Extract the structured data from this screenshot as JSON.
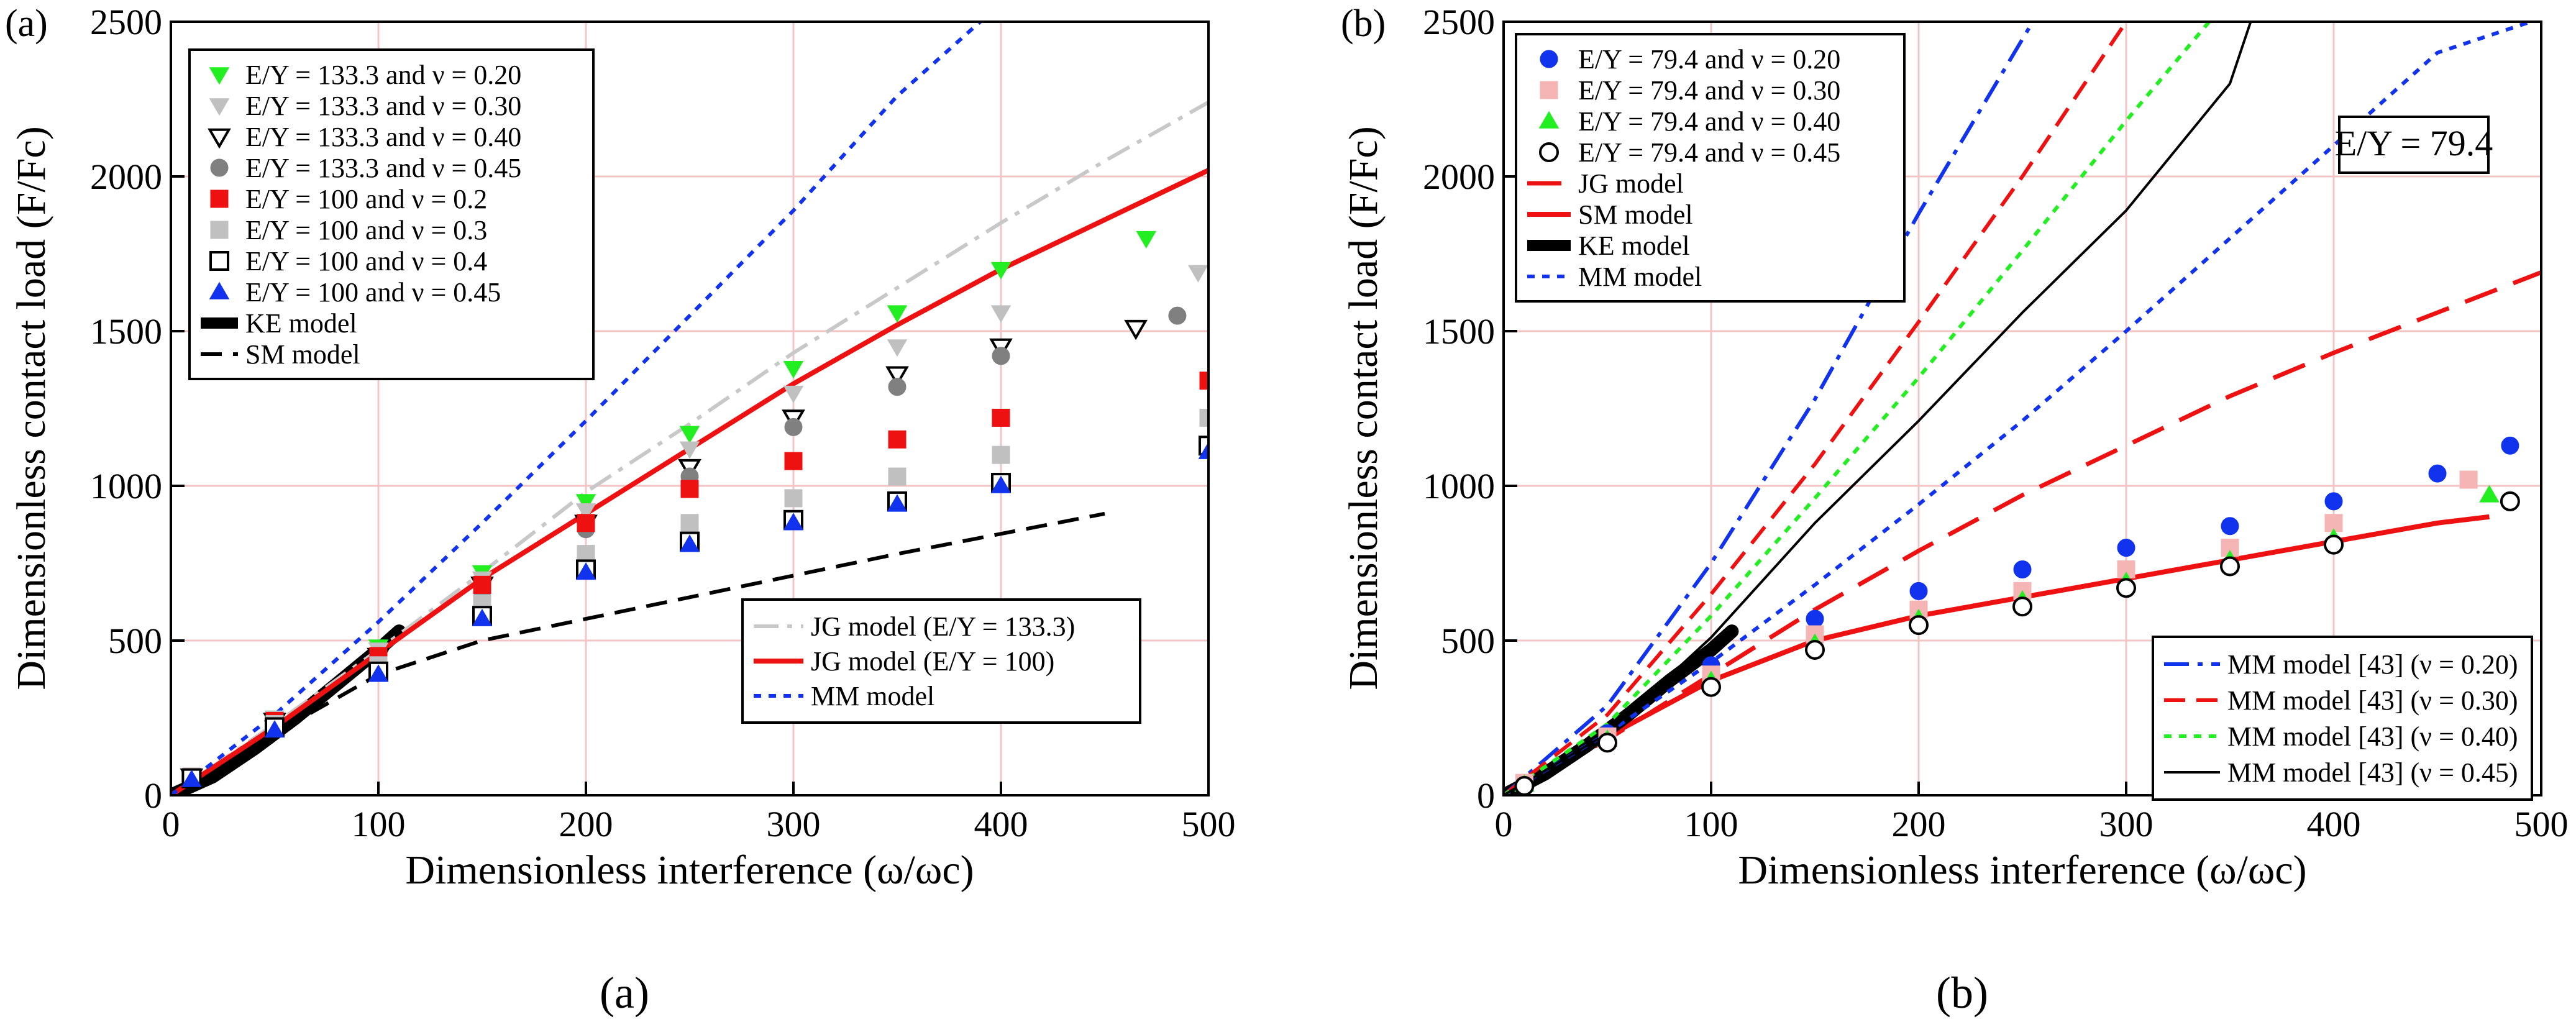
{
  "captions": [
    "(a)",
    "(b)"
  ],
  "chart_data": [
    {
      "type": "scatter",
      "panel_label": "(a)",
      "xlabel": "Dimensionless interference (ω/ωc)",
      "ylabel": "Dimensionless contact load (F/Fc)",
      "xlim": [
        0,
        500
      ],
      "ylim": [
        0,
        2500
      ],
      "xticks": [
        0,
        100,
        200,
        300,
        400,
        500
      ],
      "yticks": [
        0,
        500,
        1000,
        1500,
        2000,
        2500
      ],
      "grid": true,
      "legends": [
        {
          "placement": "top-left",
          "entries": [
            "E/Y = 133.3 and ν = 0.20",
            "E/Y = 133.3 and ν = 0.30",
            "E/Y = 133.3 and ν = 0.40",
            "E/Y = 133.3 and ν = 0.45",
            "E/Y = 100 and ν = 0.2",
            "E/Y = 100 and ν = 0.3",
            "E/Y = 100 and ν = 0.4",
            "E/Y = 100 and ν = 0.45",
            "KE model",
            "SM model"
          ]
        },
        {
          "placement": "bottom-right",
          "entries": [
            "JG model (E/Y = 133.3)",
            "JG model (E/Y = 100)",
            "MM model"
          ]
        }
      ],
      "series": [
        {
          "name": "E/Y = 133.3 and ν = 0.20",
          "kind": "marker",
          "marker": "triangle-down-filled",
          "color": "#22ee22",
          "x": [
            10,
            50,
            100,
            150,
            200,
            250,
            300,
            350,
            400,
            470
          ],
          "y": [
            60,
            250,
            480,
            720,
            950,
            1170,
            1380,
            1560,
            1700,
            1800
          ]
        },
        {
          "name": "E/Y = 133.3 and ν = 0.30",
          "kind": "marker",
          "marker": "triangle-down-filled",
          "color": "#c0c0c0",
          "x": [
            10,
            50,
            100,
            150,
            200,
            250,
            300,
            350,
            400,
            495
          ],
          "y": [
            60,
            250,
            470,
            700,
            920,
            1120,
            1300,
            1450,
            1560,
            1690
          ]
        },
        {
          "name": "E/Y = 133.3 and ν = 0.40",
          "kind": "marker",
          "marker": "triangle-down-open",
          "color": "#000000",
          "x": [
            10,
            50,
            100,
            150,
            200,
            250,
            300,
            350,
            400,
            465
          ],
          "y": [
            60,
            240,
            450,
            680,
            880,
            1060,
            1220,
            1360,
            1450,
            1510
          ]
        },
        {
          "name": "E/Y = 133.3 and ν = 0.45",
          "kind": "marker",
          "marker": "circle-filled",
          "color": "#808080",
          "x": [
            10,
            50,
            100,
            150,
            200,
            250,
            300,
            350,
            400,
            485
          ],
          "y": [
            60,
            240,
            440,
            660,
            860,
            1030,
            1190,
            1320,
            1420,
            1550
          ]
        },
        {
          "name": "E/Y = 100 and ν = 0.2",
          "kind": "marker",
          "marker": "square-filled",
          "color": "#ee1111",
          "x": [
            10,
            50,
            100,
            150,
            200,
            250,
            300,
            350,
            400,
            500
          ],
          "y": [
            60,
            240,
            450,
            680,
            880,
            990,
            1080,
            1150,
            1220,
            1340
          ]
        },
        {
          "name": "E/Y = 100 and ν = 0.3",
          "kind": "marker",
          "marker": "square-filled",
          "color": "#c0c0c0",
          "x": [
            10,
            50,
            100,
            150,
            200,
            250,
            300,
            350,
            400,
            500
          ],
          "y": [
            60,
            230,
            420,
            620,
            780,
            880,
            960,
            1030,
            1100,
            1220
          ]
        },
        {
          "name": "E/Y = 100 and ν = 0.4",
          "kind": "marker",
          "marker": "square-open",
          "color": "#000000",
          "x": [
            10,
            50,
            100,
            150,
            200,
            250,
            300,
            350,
            400,
            500
          ],
          "y": [
            55,
            220,
            400,
            580,
            730,
            820,
            890,
            950,
            1010,
            1130
          ]
        },
        {
          "name": "E/Y = 100 and ν = 0.45",
          "kind": "marker",
          "marker": "triangle-up-filled",
          "color": "#1133ee",
          "x": [
            10,
            50,
            100,
            150,
            200,
            250,
            300,
            350,
            400,
            500
          ],
          "y": [
            50,
            210,
            390,
            570,
            720,
            810,
            880,
            940,
            1000,
            1110
          ]
        },
        {
          "name": "KE model",
          "kind": "line",
          "style": "solid-thick",
          "color": "#000000",
          "x": [
            0,
            20,
            40,
            60,
            80,
            100,
            110
          ],
          "y": [
            0,
            60,
            150,
            250,
            360,
            470,
            530
          ]
        },
        {
          "name": "SM model",
          "kind": "line",
          "style": "dashed",
          "color": "#000000",
          "x": [
            0,
            50,
            100,
            150,
            200,
            250,
            300,
            350,
            400,
            450
          ],
          "y": [
            0,
            200,
            390,
            500,
            570,
            640,
            710,
            780,
            845,
            910
          ]
        },
        {
          "name": "JG model (E/Y = 133.3)",
          "kind": "line",
          "style": "dash-dot",
          "color": "#c8c8c8",
          "x": [
            0,
            50,
            100,
            150,
            200,
            250,
            300,
            350,
            400,
            450,
            500
          ],
          "y": [
            0,
            230,
            470,
            720,
            980,
            1200,
            1430,
            1640,
            1850,
            2050,
            2240
          ]
        },
        {
          "name": "JG model (E/Y = 100)",
          "kind": "line",
          "style": "solid",
          "color": "#ee1111",
          "x": [
            0,
            50,
            100,
            150,
            200,
            250,
            300,
            350,
            400,
            450,
            500
          ],
          "y": [
            0,
            220,
            460,
            700,
            910,
            1120,
            1330,
            1520,
            1700,
            1860,
            2020
          ]
        },
        {
          "name": "MM model",
          "kind": "line",
          "style": "dotted",
          "color": "#1133ee",
          "x": [
            0,
            50,
            100,
            150,
            200,
            250,
            300,
            350,
            390
          ],
          "y": [
            0,
            260,
            560,
            880,
            1210,
            1550,
            1890,
            2260,
            2500
          ]
        }
      ]
    },
    {
      "type": "scatter",
      "panel_label": "(b)",
      "annotation": "E/Y = 79.4",
      "xlabel": "Dimensionless interference (ω/ωc)",
      "ylabel": "Dimensionless contact load (F/Fc)",
      "xlim": [
        0,
        500
      ],
      "ylim": [
        0,
        2500
      ],
      "xticks": [
        0,
        100,
        200,
        300,
        400,
        500
      ],
      "yticks": [
        0,
        500,
        1000,
        1500,
        2000,
        2500
      ],
      "grid": true,
      "legends": [
        {
          "placement": "top-left",
          "entries": [
            "E/Y = 79.4 and ν = 0.20",
            "E/Y = 79.4 and ν = 0.30",
            "E/Y = 79.4 and ν = 0.40",
            "E/Y = 79.4 and ν = 0.45",
            "JG model",
            "SM model",
            "KE model",
            "MM model"
          ]
        },
        {
          "placement": "bottom-right",
          "entries": [
            "MM model [43] (ν = 0.20)",
            "MM model [43] (ν = 0.30)",
            "MM model [43] (ν = 0.40)",
            "MM model [43] (ν = 0.45)"
          ]
        }
      ],
      "series": [
        {
          "name": "E/Y = 79.4 and ν = 0.20",
          "kind": "marker",
          "marker": "circle-filled",
          "color": "#1133ee",
          "x": [
            10,
            50,
            100,
            150,
            200,
            250,
            300,
            350,
            400,
            450,
            485
          ],
          "y": [
            40,
            200,
            420,
            570,
            660,
            730,
            800,
            870,
            950,
            1040,
            1130
          ]
        },
        {
          "name": "E/Y = 79.4 and ν = 0.30",
          "kind": "marker",
          "marker": "square-filled",
          "color": "#f5b5b5",
          "x": [
            10,
            50,
            100,
            150,
            200,
            250,
            300,
            350,
            400,
            465
          ],
          "y": [
            40,
            190,
            390,
            520,
            600,
            660,
            730,
            800,
            880,
            1020
          ]
        },
        {
          "name": "E/Y = 79.4 and ν = 0.40",
          "kind": "marker",
          "marker": "triangle-up-filled",
          "color": "#22ee22",
          "x": [
            10,
            50,
            100,
            150,
            200,
            250,
            300,
            350,
            400,
            475
          ],
          "y": [
            35,
            180,
            370,
            490,
            570,
            630,
            690,
            760,
            830,
            970
          ]
        },
        {
          "name": "E/Y = 79.4 and ν = 0.45",
          "kind": "marker",
          "marker": "circle-open",
          "color": "#000000",
          "x": [
            10,
            50,
            100,
            150,
            200,
            250,
            300,
            350,
            400,
            485
          ],
          "y": [
            30,
            170,
            350,
            470,
            550,
            610,
            670,
            740,
            810,
            950
          ]
        },
        {
          "name": "JG model",
          "kind": "line",
          "style": "dashed-long",
          "color": "#ee1111",
          "x": [
            0,
            50,
            100,
            150,
            200,
            250,
            300,
            350,
            400,
            450,
            500
          ],
          "y": [
            0,
            180,
            390,
            600,
            790,
            970,
            1130,
            1290,
            1430,
            1560,
            1690
          ]
        },
        {
          "name": "SM model",
          "kind": "line",
          "style": "solid",
          "color": "#ee1111",
          "x": [
            0,
            50,
            100,
            150,
            200,
            250,
            300,
            350,
            400,
            450,
            475
          ],
          "y": [
            0,
            190,
            370,
            500,
            580,
            640,
            700,
            760,
            820,
            880,
            900
          ]
        },
        {
          "name": "KE model",
          "kind": "line",
          "style": "solid-thick",
          "color": "#000000",
          "x": [
            0,
            20,
            40,
            60,
            80,
            100,
            110
          ],
          "y": [
            0,
            70,
            160,
            260,
            370,
            470,
            530
          ]
        },
        {
          "name": "MM model",
          "kind": "line",
          "style": "dotted",
          "color": "#1133ee",
          "x": [
            0,
            50,
            100,
            150,
            200,
            250,
            300,
            350,
            400,
            450,
            495
          ],
          "y": [
            0,
            200,
            430,
            680,
            940,
            1210,
            1500,
            1800,
            2100,
            2400,
            2500
          ]
        },
        {
          "name": "MM model [43] (ν = 0.20)",
          "kind": "line",
          "style": "dash-dot",
          "color": "#1133ee",
          "x": [
            0,
            50,
            100,
            150,
            200,
            255
          ],
          "y": [
            0,
            290,
            750,
            1280,
            1880,
            2500
          ]
        },
        {
          "name": "MM model [43] (ν = 0.30)",
          "kind": "line",
          "style": "dashed",
          "color": "#ee1111",
          "x": [
            0,
            50,
            100,
            150,
            200,
            250,
            300
          ],
          "y": [
            0,
            260,
            650,
            1070,
            1530,
            2000,
            2500
          ]
        },
        {
          "name": "MM model [43] (ν = 0.40)",
          "kind": "line",
          "style": "dotted",
          "color": "#22ee22",
          "x": [
            0,
            50,
            100,
            150,
            200,
            250,
            300,
            340
          ],
          "y": [
            0,
            230,
            580,
            960,
            1350,
            1760,
            2180,
            2500
          ]
        },
        {
          "name": "MM model [43] (ν = 0.45)",
          "kind": "line",
          "style": "solid-thin",
          "color": "#000000",
          "x": [
            0,
            50,
            100,
            150,
            200,
            250,
            300,
            350,
            360
          ],
          "y": [
            0,
            200,
            510,
            880,
            1210,
            1560,
            1890,
            2300,
            2500
          ]
        }
      ]
    }
  ]
}
